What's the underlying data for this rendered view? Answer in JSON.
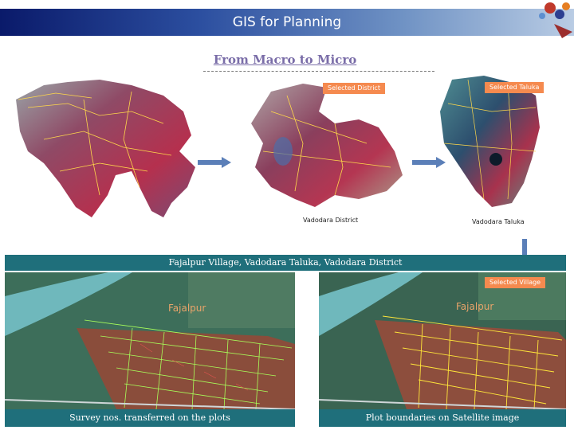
{
  "header": {
    "title": "GIS for Planning"
  },
  "subtitle": "From Macro to Micro",
  "maps": {
    "state": {
      "name": "state-map"
    },
    "district": {
      "label": "Selected District",
      "caption": "Vadodara District"
    },
    "taluka": {
      "label": "Selected Taluka",
      "caption": "Vadodara Taluka"
    }
  },
  "band": {
    "text": "Fajalpur Village, Vadodara Taluka, Vadodara District"
  },
  "village": {
    "label": "Selected Village",
    "name": "Fajalpur",
    "left_caption": "Survey nos. transferred on the plots",
    "right_caption": "Plot boundaries on Satellite image"
  },
  "colors": {
    "accent": "#f58a4f",
    "band": "#1f6f7b",
    "title_bar": "#2c4fa0",
    "boundary": "#ffd84a"
  }
}
